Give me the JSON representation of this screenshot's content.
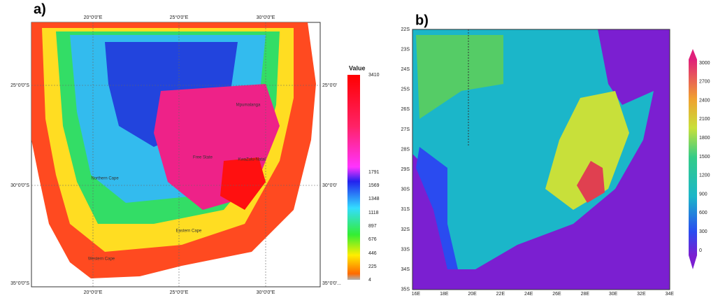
{
  "panel_a": {
    "label": "a)",
    "top_ticks": [
      "20°0'0\"E",
      "25°0'0\"E",
      "30°0'0\"E"
    ],
    "bottom_ticks": [
      "20°0'0\"E",
      "25°0'0\"E",
      "30°0'0\"E"
    ],
    "left_ticks": [
      "25°0'0\"S",
      "30°0'0\"S",
      "35°0'0\"S"
    ],
    "right_ticks": [
      "25°0'0'",
      "30°0'0'",
      "35°0'0'..."
    ],
    "places": [
      "Northern Cape",
      "Free State",
      "KwaZulu-Natal",
      "Eastern Cape",
      "Western Cape",
      "Mpumalanga"
    ],
    "legend": {
      "title": "Value",
      "ticks": [
        3410,
        1791,
        1569,
        1348,
        1118,
        897,
        676,
        446,
        225,
        4
      ]
    }
  },
  "panel_b": {
    "label": "b)",
    "y_ticks": [
      "22S",
      "23S",
      "24S",
      "25S",
      "26S",
      "27S",
      "28S",
      "29S",
      "30S",
      "31S",
      "32S",
      "33S",
      "34S",
      "35S"
    ],
    "x_ticks": [
      "16E",
      "18E",
      "20E",
      "22E",
      "24E",
      "26E",
      "28E",
      "30E",
      "32E",
      "34E"
    ],
    "legend": {
      "ticks": [
        0,
        300,
        600,
        900,
        1200,
        1500,
        1800,
        2100,
        2400,
        2700,
        3000
      ]
    }
  }
}
